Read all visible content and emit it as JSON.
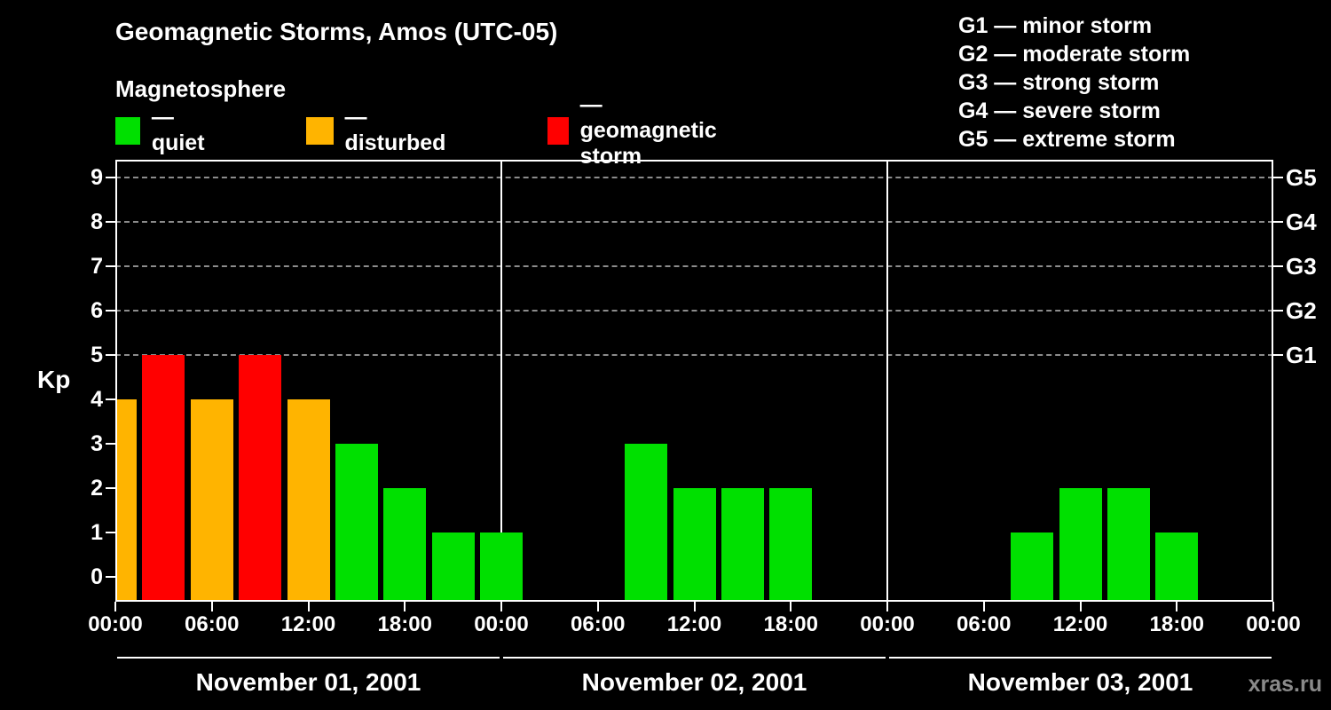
{
  "header": {
    "title": "Geomagnetic Storms, Amos (UTC-05)",
    "subtitle": "Magnetosphere"
  },
  "legend": {
    "items": [
      {
        "key": "quiet",
        "label": "— quiet"
      },
      {
        "key": "disturbed",
        "label": "— disturbed"
      },
      {
        "key": "storm",
        "label": "— geomagnetic storm"
      }
    ]
  },
  "g_legend": {
    "items": [
      "G1 — minor storm",
      "G2 — moderate storm",
      "G3 — strong storm",
      "G4 — severe storm",
      "G5 — extreme storm"
    ]
  },
  "watermark": "xras.ru",
  "chart_data": {
    "type": "bar",
    "title": "Geomagnetic Storms, Amos (UTC-05)",
    "subtitle": "Magnetosphere",
    "ylabel": "Kp",
    "ylim": [
      0,
      9
    ],
    "y_ticks": [
      0,
      1,
      2,
      3,
      4,
      5,
      6,
      7,
      8,
      9
    ],
    "x_tick_labels": [
      "00:00",
      "06:00",
      "12:00",
      "18:00",
      "00:00",
      "06:00",
      "12:00",
      "18:00",
      "00:00",
      "06:00",
      "12:00",
      "18:00",
      "00:00"
    ],
    "interval_hours": 3,
    "grid": "dashed-at-g-levels",
    "legend_position": "top",
    "g_levels": [
      {
        "kp": 5,
        "label": "G1"
      },
      {
        "kp": 6,
        "label": "G2"
      },
      {
        "kp": 7,
        "label": "G3"
      },
      {
        "kp": 8,
        "label": "G4"
      },
      {
        "kp": 9,
        "label": "G5"
      }
    ],
    "days": [
      {
        "date": "November 01, 2001",
        "values": [
          4,
          5,
          4,
          5,
          4,
          3,
          2,
          1
        ]
      },
      {
        "date": "November 02, 2001",
        "values": [
          1,
          0,
          0,
          3,
          2,
          2,
          2,
          0
        ]
      },
      {
        "date": "November 03, 2001",
        "values": [
          0,
          0,
          0,
          1,
          2,
          2,
          1,
          0
        ]
      }
    ],
    "colors": {
      "quiet": "#00e000",
      "disturbed": "#ffb400",
      "storm": "#ff0000"
    },
    "color_rules": {
      "storm_min_kp": 5,
      "disturbed_kp": 4
    }
  }
}
